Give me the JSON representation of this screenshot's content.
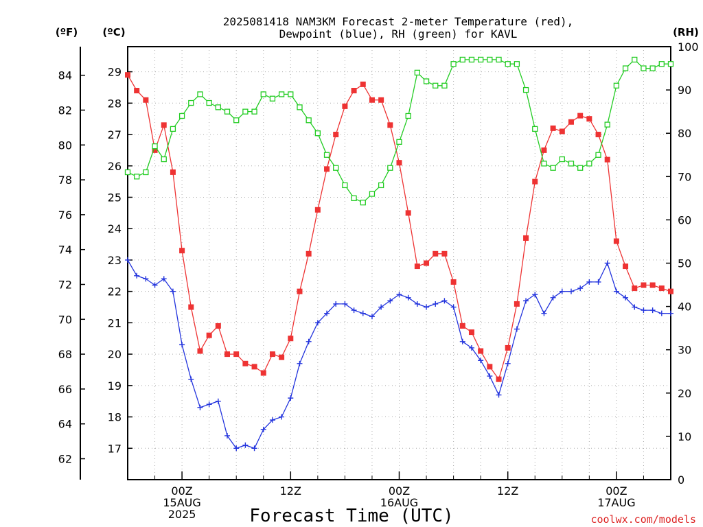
{
  "chart_data": {
    "type": "line",
    "title_line1": "2025081418 NAM3KM Forecast 2-meter Temperature (red),",
    "title_line2": "Dewpoint (blue), RH (green) for KAVL",
    "xlabel": "Forecast Time (UTC)",
    "left_unit_f": "(ºF)",
    "left_unit_c": "(ºC)",
    "right_unit": "(RH)",
    "credit": "coolwx.com/models",
    "x_ticks": [
      {
        "hour": 6,
        "lines": [
          "00Z",
          "15AUG",
          "2025"
        ]
      },
      {
        "hour": 18,
        "lines": [
          "12Z",
          "",
          ""
        ]
      },
      {
        "hour": 30,
        "lines": [
          "00Z",
          "16AUG",
          ""
        ]
      },
      {
        "hour": 42,
        "lines": [
          "12Z",
          "",
          ""
        ]
      },
      {
        "hour": 54,
        "lines": [
          "00Z",
          "17AUG",
          ""
        ]
      }
    ],
    "xlim_hours": [
      0,
      60
    ],
    "y_c_lim": [
      16.0,
      29.8
    ],
    "y_c_ticks": [
      17,
      18,
      19,
      20,
      21,
      22,
      23,
      24,
      25,
      26,
      27,
      28,
      29
    ],
    "y_f_ticks": [
      62,
      64,
      66,
      68,
      70,
      72,
      74,
      76,
      78,
      80,
      82,
      84
    ],
    "y_rh_lim": [
      0,
      100
    ],
    "y_rh_ticks": [
      0,
      10,
      20,
      30,
      40,
      50,
      60,
      70,
      80,
      90,
      100
    ],
    "grid": true,
    "series": [
      {
        "name": "Temperature",
        "axis": "c",
        "color": "#ee3333",
        "marker": "filled-square",
        "values": [
          28.9,
          28.4,
          28.1,
          26.5,
          27.3,
          25.8,
          23.3,
          21.5,
          20.1,
          20.6,
          20.9,
          20.0,
          20.0,
          19.7,
          19.6,
          19.4,
          20.0,
          19.9,
          20.5,
          22.0,
          23.2,
          24.6,
          25.9,
          27.0,
          27.9,
          28.4,
          28.6,
          28.1,
          28.1,
          27.3,
          26.1,
          24.5,
          22.8,
          22.9,
          23.2,
          23.2,
          22.3,
          20.9,
          20.7,
          20.1,
          19.6,
          19.2,
          20.2,
          21.6,
          23.7,
          25.5,
          26.5,
          27.2,
          27.1,
          27.4,
          27.6,
          27.5,
          27.0,
          26.2,
          23.6,
          22.8,
          22.1,
          22.2,
          22.2,
          22.1,
          22.0
        ]
      },
      {
        "name": "Dewpoint",
        "axis": "c",
        "color": "#2233dd",
        "marker": "plus",
        "values": [
          23.0,
          22.5,
          22.4,
          22.2,
          22.4,
          22.0,
          20.3,
          19.2,
          18.3,
          18.4,
          18.5,
          17.4,
          17.0,
          17.1,
          17.0,
          17.6,
          17.9,
          18.0,
          18.6,
          19.7,
          20.4,
          21.0,
          21.3,
          21.6,
          21.6,
          21.4,
          21.3,
          21.2,
          21.5,
          21.7,
          21.9,
          21.8,
          21.6,
          21.5,
          21.6,
          21.7,
          21.5,
          20.4,
          20.2,
          19.8,
          19.3,
          18.7,
          19.7,
          20.8,
          21.7,
          21.9,
          21.3,
          21.8,
          22.0,
          22.0,
          22.1,
          22.3,
          22.3,
          22.9,
          22.0,
          21.8,
          21.5,
          21.4,
          21.4,
          21.3,
          21.3
        ]
      },
      {
        "name": "RH",
        "axis": "rh",
        "color": "#22cc22",
        "marker": "open-square",
        "values": [
          71,
          70,
          71,
          77,
          74,
          81,
          84,
          87,
          89,
          87,
          86,
          85,
          83,
          85,
          85,
          89,
          88,
          89,
          89,
          86,
          83,
          80,
          75,
          72,
          68,
          65,
          64,
          66,
          68,
          72,
          78,
          84,
          94,
          92,
          91,
          91,
          96,
          97,
          97,
          97,
          97,
          97,
          96,
          96,
          90,
          81,
          73,
          72,
          74,
          73,
          72,
          73,
          75,
          82,
          91,
          95,
          97,
          95,
          95,
          96,
          96
        ]
      }
    ]
  }
}
